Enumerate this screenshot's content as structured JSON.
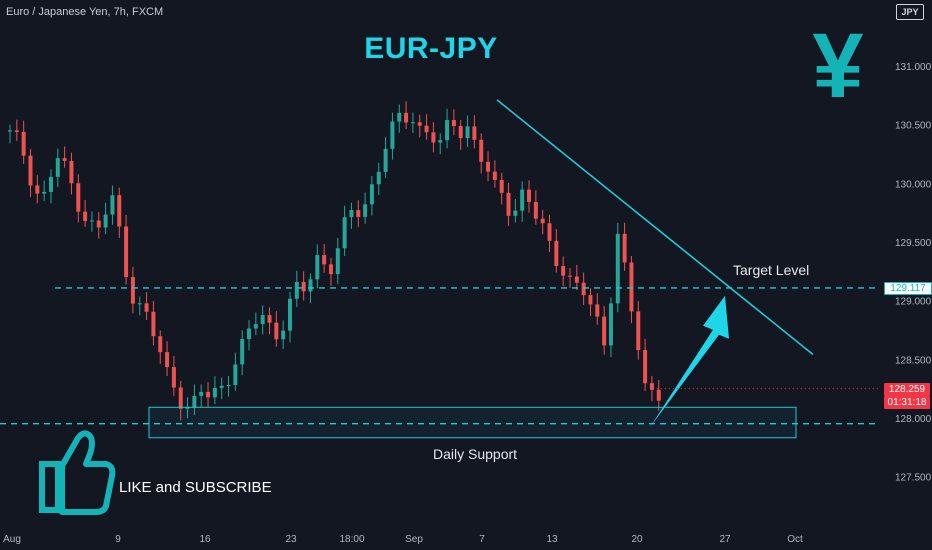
{
  "header": {
    "symbol": "Euro / Japanese Yen, 7h, FXCM"
  },
  "headline": "EUR-JPY",
  "yen_symbol": "¥",
  "currency_badge": "JPY",
  "annotations": {
    "target_level": "Target Level",
    "daily_support": "Daily Support",
    "like_subscribe": "LIKE and SUBSCRIBE"
  },
  "price_tags": {
    "target": "129.117",
    "last": "128.259",
    "timer": "01:31:18"
  },
  "colors": {
    "background": "#131722",
    "up": "#26a69a",
    "down": "#ef5350",
    "accent": "#1fd5e8",
    "level_line": "#22c9d6"
  },
  "icons": {
    "thumb": "thumbs-up-icon",
    "arrow": "up-arrow-icon"
  },
  "chart_data": {
    "type": "candlestick",
    "title": "",
    "ylim": [
      127.2,
      131.6
    ],
    "y_ticks": [
      "131.000",
      "130.500",
      "130.000",
      "129.500",
      "129.000",
      "128.500",
      "128.000",
      "127.500"
    ],
    "x_ticks": [
      "Aug",
      "9",
      "16",
      "23",
      "18:00",
      "Sep",
      "7",
      "13",
      "20",
      "27",
      "Oct"
    ],
    "horizontal_levels": [
      {
        "label": "Target Level",
        "price": 129.117
      },
      {
        "label": "Daily Support",
        "price": 127.96
      }
    ],
    "support_zone": {
      "label": "Daily Support",
      "low": 127.84,
      "high": 128.1
    },
    "trendline": {
      "from": {
        "x": 7.3,
        "y": 130.72
      },
      "to": {
        "x": 31.2,
        "y": 128.55
      }
    },
    "projection_arrow": {
      "from": {
        "x": 24.0,
        "y": 127.93
      },
      "to": {
        "x": 27.0,
        "y": 129.05
      }
    },
    "last_price": 128.259,
    "candles_close": [
      130.35,
      130.1,
      129.9,
      130.2,
      130.0,
      129.75,
      129.6,
      129.85,
      129.3,
      128.95,
      128.7,
      128.4,
      128.2,
      128.1,
      128.2,
      128.3,
      128.5,
      128.7,
      128.9,
      128.75,
      128.95,
      129.1,
      129.4,
      129.3,
      129.6,
      129.8,
      130.0,
      130.3,
      130.55,
      130.6,
      130.45,
      130.3,
      130.55,
      130.5,
      130.2,
      129.95,
      129.85,
      129.9,
      129.7,
      129.5,
      129.3,
      129.1,
      128.95,
      128.7,
      129.55,
      128.9,
      128.28,
      128.26
    ]
  }
}
